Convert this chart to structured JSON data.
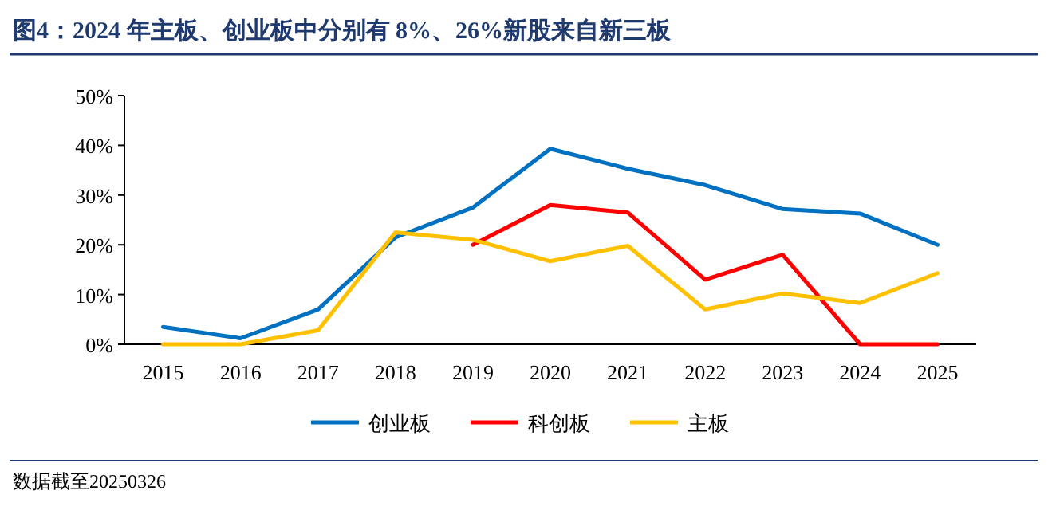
{
  "chart_data": {
    "type": "line",
    "title": "图4：2024 年主板、创业板中分别有 8%、26%新股来自新三板",
    "categories": [
      "2015",
      "2016",
      "2017",
      "2018",
      "2019",
      "2020",
      "2021",
      "2022",
      "2023",
      "2024",
      "2025"
    ],
    "series": [
      {
        "name": "创业板",
        "color": "#0070c0",
        "values": [
          3.5,
          1.2,
          7,
          21.5,
          27.5,
          39.3,
          35.3,
          32,
          27.2,
          26.3,
          20
        ]
      },
      {
        "name": "科创板",
        "color": "#ff0000",
        "values": [
          null,
          null,
          null,
          null,
          20,
          28,
          26.5,
          13,
          18,
          0,
          0
        ]
      },
      {
        "name": "主板",
        "color": "#ffc000",
        "values": [
          0,
          0,
          2.8,
          22.5,
          21,
          16.7,
          19.8,
          7,
          10.2,
          8.3,
          14.3
        ]
      }
    ],
    "ylim": [
      0,
      50
    ],
    "yticks": [
      {
        "value": 0,
        "label": "0%"
      },
      {
        "value": 10,
        "label": "10%"
      },
      {
        "value": 20,
        "label": "20%"
      },
      {
        "value": 30,
        "label": "30%"
      },
      {
        "value": 40,
        "label": "40%"
      },
      {
        "value": 50,
        "label": "50%"
      }
    ],
    "legend": "bottom",
    "annotations": [
      "数据截至20250326"
    ]
  }
}
